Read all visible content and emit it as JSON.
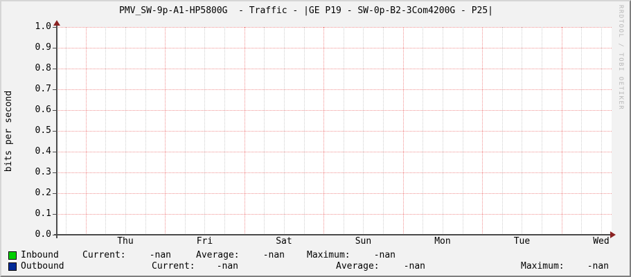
{
  "title": "PMV_SW-9p-A1-HP5800G  - Traffic - |GE P19 - SW-0p-B2-3Com4200G - P25|",
  "watermark": "RRDTOOL / TOBI OETIKER",
  "chart_data": {
    "type": "line",
    "title": "PMV_SW-9p-A1-HP5800G  - Traffic - |GE P19 - SW-0p-B2-3Com4200G - P25|",
    "xlabel": "",
    "ylabel": "bits per second",
    "ylim": [
      0.0,
      1.0
    ],
    "y_tick_step": 0.1,
    "y_tick_labels": [
      "1.0",
      "0.9",
      "0.8",
      "0.7",
      "0.6",
      "0.5",
      "0.4",
      "0.3",
      "0.2",
      "0.1",
      "0.0"
    ],
    "x_tick_labels": [
      "Thu",
      "Fri",
      "Sat",
      "Sun",
      "Mon",
      "Tue",
      "Wed"
    ],
    "grid": true,
    "legend_position": "bottom-left",
    "series": [
      {
        "name": "Inbound",
        "color": "#00CF00",
        "values": [],
        "current": "-nan",
        "average": "-nan",
        "maximum": "-nan"
      },
      {
        "name": "Outbound",
        "color": "#002A97",
        "values": [],
        "current": "-nan",
        "average": "-nan",
        "maximum": "-nan"
      }
    ]
  },
  "legend": {
    "rows": [
      {
        "name": "Inbound",
        "swatch_color": "#00CF00",
        "current_label": "Current:",
        "current": "-nan",
        "average_label": "Average:",
        "average": "-nan",
        "maximum_label": "Maximum:",
        "maximum": "-nan"
      },
      {
        "name": "Outbound",
        "swatch_color": "#002A97",
        "current_label": "Current:",
        "current": "-nan",
        "average_label": "Average:",
        "average": "-nan",
        "maximum_label": "Maximum:",
        "maximum": "-nan"
      }
    ]
  },
  "colors": {
    "background": "#F2F2F2",
    "plot_background": "#FFFFFF",
    "major_grid": "#F19090",
    "minor_grid": "#CFCFCF",
    "axis": "#4A4A4A",
    "arrow": "#8B2222",
    "watermark_text": "#B8B8B8"
  }
}
